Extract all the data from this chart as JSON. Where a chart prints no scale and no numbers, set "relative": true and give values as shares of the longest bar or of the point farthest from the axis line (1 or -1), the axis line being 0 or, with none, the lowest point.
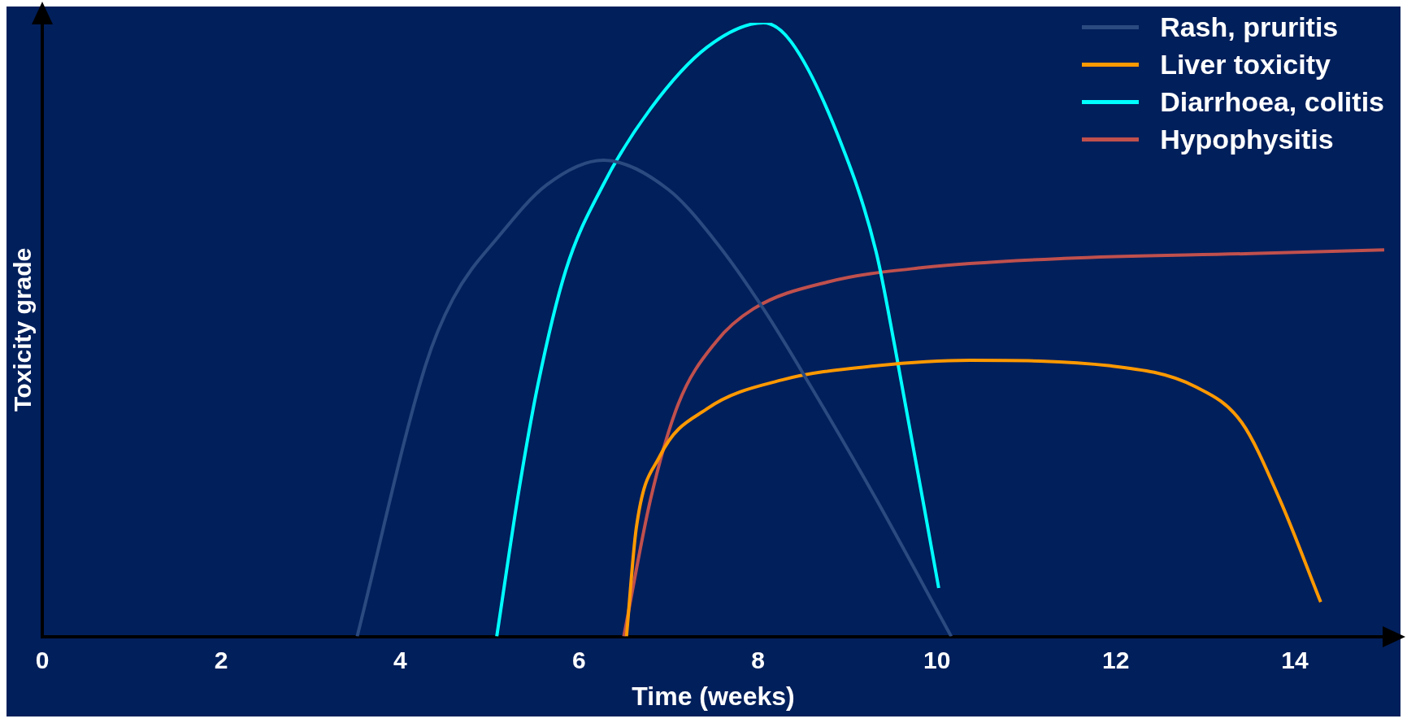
{
  "chart_data": {
    "type": "line",
    "relative": true,
    "xlabel": "Time (weeks)",
    "ylabel": "Toxicity grade",
    "xlim": [
      0,
      15
    ],
    "xticks": [
      0,
      2,
      4,
      6,
      8,
      10,
      12,
      14
    ],
    "grid": false,
    "legend": "top right",
    "marker": "none",
    "line_style": "solid",
    "series": [
      {
        "name": "Rash, pruritis",
        "color": "#2b4a80",
        "x": [
          3.52,
          4.28,
          4.59,
          5.12,
          5.64,
          6.27,
          7.0,
          7.53,
          8.06,
          8.58,
          9.32,
          10.16
        ],
        "values": [
          0,
          0.44,
          0.55,
          0.655,
          0.736,
          0.776,
          0.728,
          0.643,
          0.534,
          0.41,
          0.224,
          0
        ]
      },
      {
        "name": "Liver toxicity",
        "color": "#ff9900",
        "x": [
          6.53,
          6.64,
          6.9,
          7.43,
          8.27,
          9.32,
          10.37,
          11.94,
          12.89,
          13.41,
          13.83,
          14.29
        ],
        "values": [
          0,
          0.177,
          0.293,
          0.371,
          0.418,
          0.441,
          0.45,
          0.441,
          0.407,
          0.348,
          0.224,
          0.056
        ]
      },
      {
        "name": "Diarrhoea, colitis",
        "color": "#00ffff",
        "x": [
          5.08,
          5.33,
          5.54,
          5.85,
          6.27,
          6.8,
          7.43,
          8.06,
          8.37,
          8.9,
          9.32,
          9.53,
          10.02
        ],
        "values": [
          0,
          0.24,
          0.41,
          0.596,
          0.736,
          0.86,
          0.96,
          1,
          0.969,
          0.814,
          0.627,
          0.472,
          0.079
        ]
      },
      {
        "name": "Hypophysitis",
        "color": "#c0504d",
        "x": [
          6.5,
          6.8,
          7.11,
          7.53,
          7.95,
          8.79,
          9.84,
          11.42,
          13.52,
          15.0
        ],
        "values": [
          0,
          0.224,
          0.379,
          0.48,
          0.534,
          0.578,
          0.601,
          0.616,
          0.624,
          0.63
        ]
      }
    ]
  }
}
